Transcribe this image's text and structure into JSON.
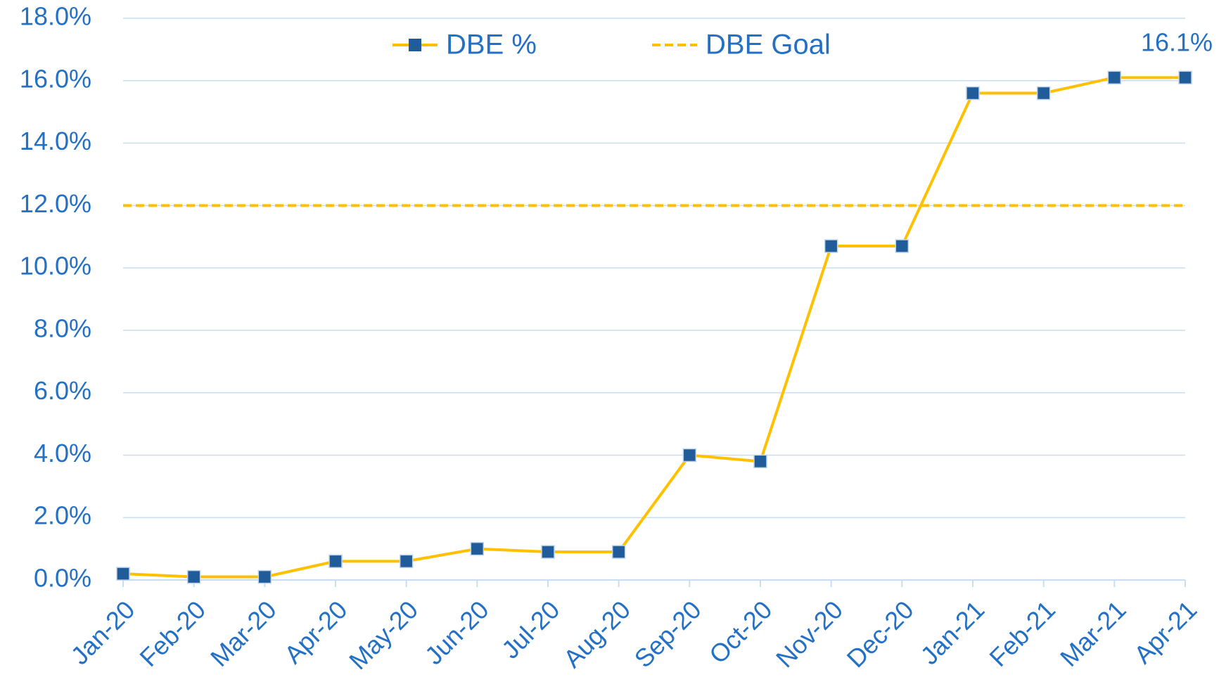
{
  "chart_data": {
    "type": "line",
    "categories": [
      "Jan-20",
      "Feb-20",
      "Mar-20",
      "Apr-20",
      "May-20",
      "Jun-20",
      "Jul-20",
      "Aug-20",
      "Sep-20",
      "Oct-20",
      "Nov-20",
      "Dec-20",
      "Jan-21",
      "Feb-21",
      "Mar-21",
      "Apr-21"
    ],
    "series": [
      {
        "name": "DBE %",
        "color": "#FFC000",
        "marker_color": "#1F5C99",
        "dashed": false,
        "marker": true,
        "values": [
          0.2,
          0.1,
          0.1,
          0.6,
          0.6,
          1.0,
          0.9,
          0.9,
          4.0,
          3.8,
          10.7,
          10.7,
          15.6,
          15.6,
          16.1,
          16.1
        ],
        "value_labels": [
          null,
          null,
          null,
          null,
          null,
          null,
          null,
          null,
          null,
          null,
          null,
          null,
          null,
          null,
          null,
          "16.1%"
        ]
      },
      {
        "name": "DBE Goal",
        "color": "#FFC000",
        "dashed": true,
        "marker": false,
        "values": [
          12.0,
          12.0,
          12.0,
          12.0,
          12.0,
          12.0,
          12.0,
          12.0,
          12.0,
          12.0,
          12.0,
          12.0,
          12.0,
          12.0,
          12.0,
          12.0
        ]
      }
    ],
    "ylim": [
      0,
      18
    ],
    "yticks": [
      {
        "value": 0,
        "label": "0.0%"
      },
      {
        "value": 2,
        "label": "2.0%"
      },
      {
        "value": 4,
        "label": "4.0%"
      },
      {
        "value": 6,
        "label": "6.0%"
      },
      {
        "value": 8,
        "label": "8.0%"
      },
      {
        "value": 10,
        "label": "10.0%"
      },
      {
        "value": 12,
        "label": "12.0%"
      },
      {
        "value": 14,
        "label": "14.0%"
      },
      {
        "value": 16,
        "label": "16.0%"
      },
      {
        "value": 18,
        "label": "18.0%"
      }
    ],
    "grid": true,
    "legend": "top"
  }
}
